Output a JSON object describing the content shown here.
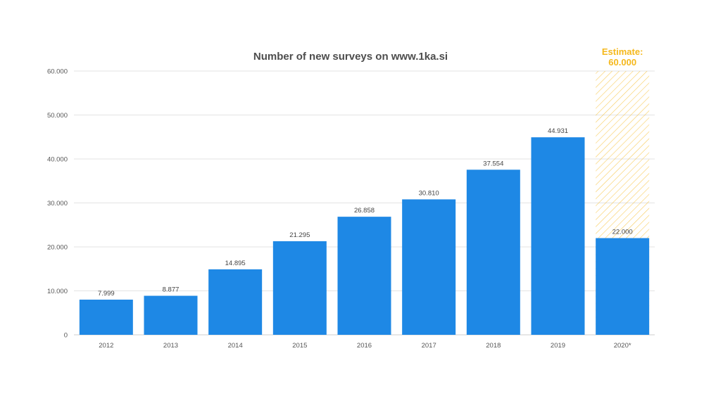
{
  "chart_data": {
    "type": "bar",
    "title": "Number of new surveys on www.1ka.si",
    "categories": [
      "2012",
      "2013",
      "2014",
      "2015",
      "2016",
      "2017",
      "2018",
      "2019",
      "2020*"
    ],
    "values": [
      7999,
      8877,
      14895,
      21295,
      26858,
      30810,
      37554,
      44931,
      22000
    ],
    "value_labels": [
      "7.999",
      "8.877",
      "14.895",
      "21.295",
      "26.858",
      "30.810",
      "37.554",
      "44.931",
      "22.000"
    ],
    "yticks": [
      0,
      10000,
      20000,
      30000,
      40000,
      50000,
      60000
    ],
    "ytick_labels": [
      "0",
      "10.000",
      "20.000",
      "30.000",
      "40.000",
      "50.000",
      "60.000"
    ],
    "ylim": [
      0,
      60000
    ],
    "grid": true,
    "estimate": {
      "category": "2020*",
      "value": 60000,
      "label_line1": "Estimate:",
      "label_line2": "60.000"
    },
    "colors": {
      "bar": "#1e88e5",
      "estimate": "#f5b81c",
      "grid": "#e3e3e3",
      "title": "#4d4d4d"
    }
  }
}
